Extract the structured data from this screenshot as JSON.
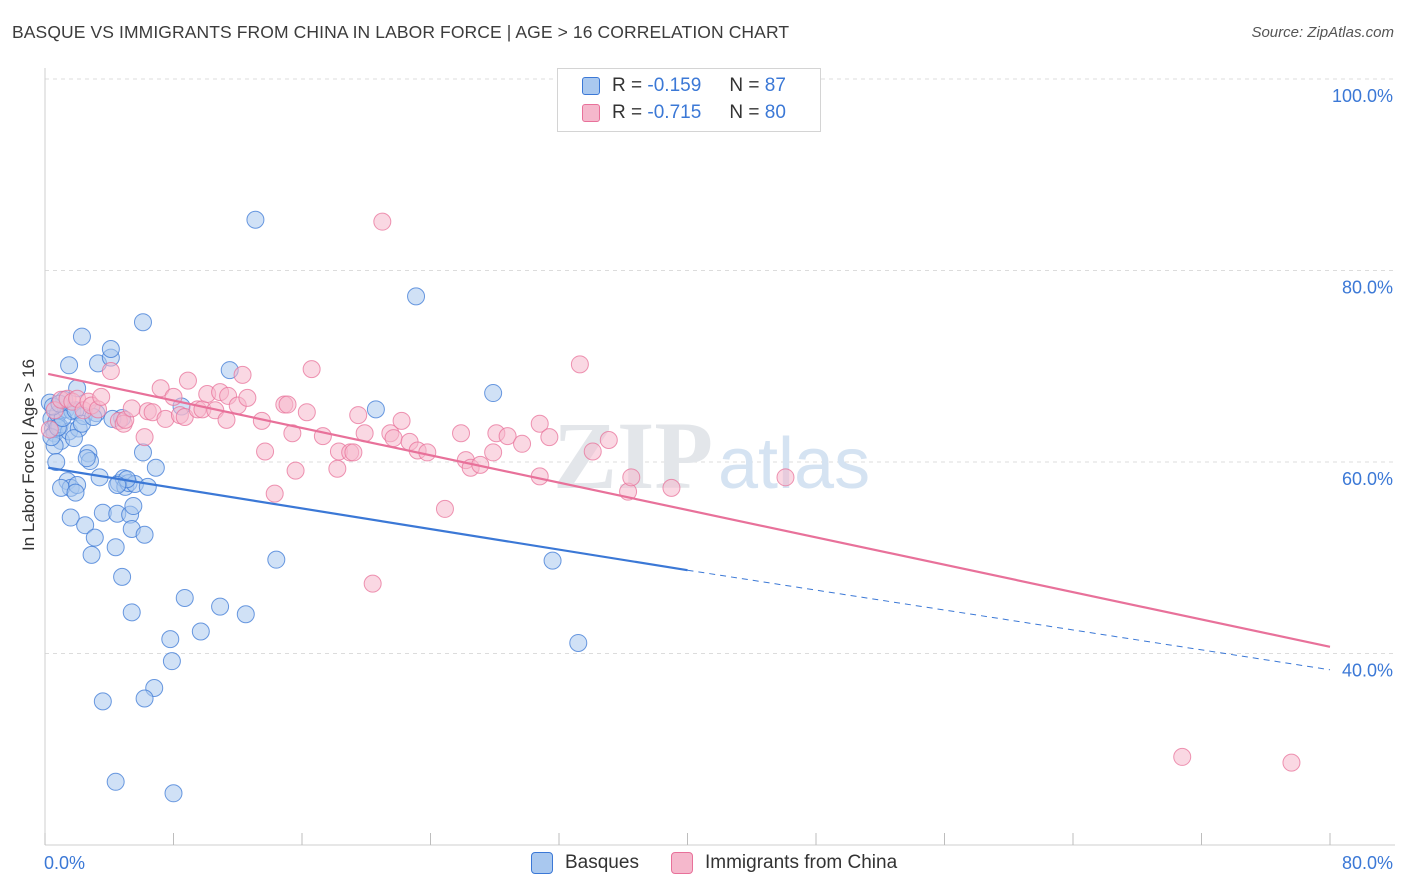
{
  "title": "BASQUE VS IMMIGRANTS FROM CHINA IN LABOR FORCE | AGE > 16 CORRELATION CHART",
  "source": "Source: ZipAtlas.com",
  "watermark": {
    "zip": "ZIP",
    "atlas": "atlas"
  },
  "legend": {
    "r_label": "R =",
    "n_label": "N =",
    "series": [
      {
        "r": "-0.159",
        "n": "87",
        "color": "#3b78d6",
        "fill": "#a9c8ef"
      },
      {
        "r": "-0.715",
        "n": "80",
        "color": "#e8719a",
        "fill": "#f5b8cc"
      }
    ]
  },
  "bottom_legend": [
    "Basques",
    "Immigrants from China"
  ],
  "chart_data": {
    "type": "scatter",
    "title": "BASQUE VS IMMIGRANTS FROM CHINA IN LABOR FORCE | AGE > 16 CORRELATION CHART",
    "xlabel": "",
    "ylabel": "In Labor Force | Age > 16",
    "xlim": [
      0,
      80
    ],
    "ylim": [
      18,
      102
    ],
    "x_tick_labels": [
      "0.0%",
      "80.0%"
    ],
    "y_ticks": [
      40,
      60,
      80,
      100
    ],
    "y_tick_labels": [
      "40.0%",
      "60.0%",
      "80.0%",
      "100.0%"
    ],
    "grid": true,
    "legend_position": "top-center",
    "series": [
      {
        "name": "Basques",
        "color": "#3b78d6",
        "fill": "#a9c8ef",
        "trend": {
          "x0": 0.2,
          "y0": 59.4,
          "x1": 40,
          "y1": 48.7,
          "dash_to_x": 80,
          "dash_to_y": 38.3
        },
        "points": [
          [
            0.3,
            66.2
          ],
          [
            0.4,
            64.5
          ],
          [
            0.5,
            63.5
          ],
          [
            0.6,
            63.0
          ],
          [
            0.7,
            64.2
          ],
          [
            0.8,
            65.0
          ],
          [
            0.9,
            63.7
          ],
          [
            1.0,
            62.2
          ],
          [
            0.6,
            61.7
          ],
          [
            0.7,
            60.0
          ],
          [
            1.5,
            63.2
          ],
          [
            1.3,
            65.5
          ],
          [
            1.7,
            65.3
          ],
          [
            2.1,
            63.5
          ],
          [
            1.8,
            62.5
          ],
          [
            2.4,
            64.8
          ],
          [
            3.2,
            65.1
          ],
          [
            2.0,
            67.7
          ],
          [
            1.5,
            70.1
          ],
          [
            2.3,
            73.1
          ],
          [
            3.3,
            70.3
          ],
          [
            4.1,
            70.9
          ],
          [
            4.1,
            71.8
          ],
          [
            6.1,
            74.6
          ],
          [
            2.7,
            60.9
          ],
          [
            2.8,
            60.1
          ],
          [
            2.6,
            60.4
          ],
          [
            1.4,
            58.0
          ],
          [
            1.6,
            57.3
          ],
          [
            1.0,
            57.3
          ],
          [
            2.0,
            57.6
          ],
          [
            1.9,
            56.8
          ],
          [
            3.4,
            58.4
          ],
          [
            3.6,
            54.7
          ],
          [
            4.5,
            54.6
          ],
          [
            5.3,
            54.5
          ],
          [
            5.4,
            53.0
          ],
          [
            5.5,
            55.4
          ],
          [
            6.2,
            52.4
          ],
          [
            4.6,
            57.8
          ],
          [
            4.9,
            58.3
          ],
          [
            5.0,
            57.4
          ],
          [
            5.2,
            57.8
          ],
          [
            5.6,
            57.7
          ],
          [
            6.4,
            57.4
          ],
          [
            5.1,
            58.2
          ],
          [
            6.9,
            59.4
          ],
          [
            4.8,
            64.6
          ],
          [
            4.2,
            64.5
          ],
          [
            6.1,
            61.0
          ],
          [
            1.6,
            54.2
          ],
          [
            2.5,
            53.4
          ],
          [
            3.1,
            52.1
          ],
          [
            2.9,
            50.3
          ],
          [
            4.4,
            51.1
          ],
          [
            4.8,
            48.0
          ],
          [
            5.4,
            44.3
          ],
          [
            8.7,
            45.8
          ],
          [
            10.9,
            44.9
          ],
          [
            12.5,
            44.1
          ],
          [
            9.7,
            42.3
          ],
          [
            7.8,
            41.5
          ],
          [
            7.9,
            39.2
          ],
          [
            6.8,
            36.4
          ],
          [
            6.2,
            35.3
          ],
          [
            3.6,
            35.0
          ],
          [
            4.4,
            26.6
          ],
          [
            8.0,
            25.4
          ],
          [
            11.5,
            69.6
          ],
          [
            8.5,
            65.8
          ],
          [
            13.1,
            85.3
          ],
          [
            14.4,
            49.8
          ],
          [
            20.6,
            65.5
          ],
          [
            23.1,
            77.3
          ],
          [
            27.9,
            67.2
          ],
          [
            31.6,
            49.7
          ],
          [
            33.2,
            41.1
          ],
          [
            0.4,
            62.6
          ],
          [
            0.8,
            63.6
          ],
          [
            1.1,
            64.6
          ],
          [
            1.9,
            65.4
          ],
          [
            2.3,
            64.0
          ],
          [
            1.2,
            66.5
          ],
          [
            0.5,
            65.8
          ],
          [
            0.9,
            66.1
          ],
          [
            3.0,
            64.7
          ],
          [
            4.5,
            57.6
          ]
        ]
      },
      {
        "name": "Immigrants from China",
        "color": "#e8719a",
        "fill": "#f5b8cc",
        "trend": {
          "x0": 0.2,
          "y0": 69.2,
          "x1": 80,
          "y1": 40.7
        },
        "points": [
          [
            0.3,
            63.4
          ],
          [
            0.6,
            65.4
          ],
          [
            1.0,
            66.5
          ],
          [
            1.4,
            66.6
          ],
          [
            1.7,
            66.3
          ],
          [
            2.0,
            66.6
          ],
          [
            2.4,
            65.4
          ],
          [
            2.7,
            66.3
          ],
          [
            2.9,
            65.9
          ],
          [
            3.3,
            65.5
          ],
          [
            3.5,
            66.8
          ],
          [
            4.1,
            69.5
          ],
          [
            4.6,
            64.3
          ],
          [
            4.9,
            64.0
          ],
          [
            5.0,
            64.4
          ],
          [
            5.4,
            65.6
          ],
          [
            6.2,
            62.6
          ],
          [
            6.4,
            65.3
          ],
          [
            6.7,
            65.2
          ],
          [
            7.2,
            67.7
          ],
          [
            7.5,
            64.5
          ],
          [
            8.0,
            66.8
          ],
          [
            8.4,
            64.9
          ],
          [
            8.9,
            68.5
          ],
          [
            8.7,
            64.7
          ],
          [
            9.5,
            65.5
          ],
          [
            9.8,
            65.5
          ],
          [
            10.1,
            67.1
          ],
          [
            10.6,
            65.4
          ],
          [
            10.9,
            67.3
          ],
          [
            11.3,
            64.4
          ],
          [
            11.4,
            66.9
          ],
          [
            12.3,
            69.1
          ],
          [
            12.0,
            65.9
          ],
          [
            12.6,
            66.7
          ],
          [
            13.5,
            64.3
          ],
          [
            13.7,
            61.1
          ],
          [
            14.3,
            56.7
          ],
          [
            14.9,
            66.0
          ],
          [
            15.1,
            66.0
          ],
          [
            15.4,
            63.0
          ],
          [
            15.6,
            59.1
          ],
          [
            16.3,
            65.2
          ],
          [
            16.6,
            69.7
          ],
          [
            17.3,
            62.7
          ],
          [
            18.2,
            59.3
          ],
          [
            18.3,
            61.1
          ],
          [
            19.0,
            61.0
          ],
          [
            19.2,
            61.0
          ],
          [
            19.5,
            64.9
          ],
          [
            19.9,
            63.0
          ],
          [
            20.4,
            47.3
          ],
          [
            21.0,
            85.1
          ],
          [
            21.5,
            63.0
          ],
          [
            21.7,
            62.5
          ],
          [
            22.2,
            64.3
          ],
          [
            22.7,
            62.1
          ],
          [
            23.2,
            61.2
          ],
          [
            23.8,
            61.0
          ],
          [
            24.9,
            55.1
          ],
          [
            25.9,
            63.0
          ],
          [
            26.2,
            60.2
          ],
          [
            26.5,
            59.4
          ],
          [
            27.1,
            59.7
          ],
          [
            27.9,
            61.0
          ],
          [
            28.1,
            63.0
          ],
          [
            28.8,
            62.7
          ],
          [
            29.7,
            61.9
          ],
          [
            30.8,
            64.0
          ],
          [
            30.8,
            58.5
          ],
          [
            31.4,
            62.6
          ],
          [
            33.3,
            70.2
          ],
          [
            34.1,
            61.1
          ],
          [
            35.1,
            62.3
          ],
          [
            36.3,
            56.9
          ],
          [
            36.5,
            58.4
          ],
          [
            39.0,
            57.3
          ],
          [
            46.1,
            58.4
          ],
          [
            70.8,
            29.2
          ],
          [
            77.6,
            28.6
          ]
        ]
      }
    ]
  }
}
